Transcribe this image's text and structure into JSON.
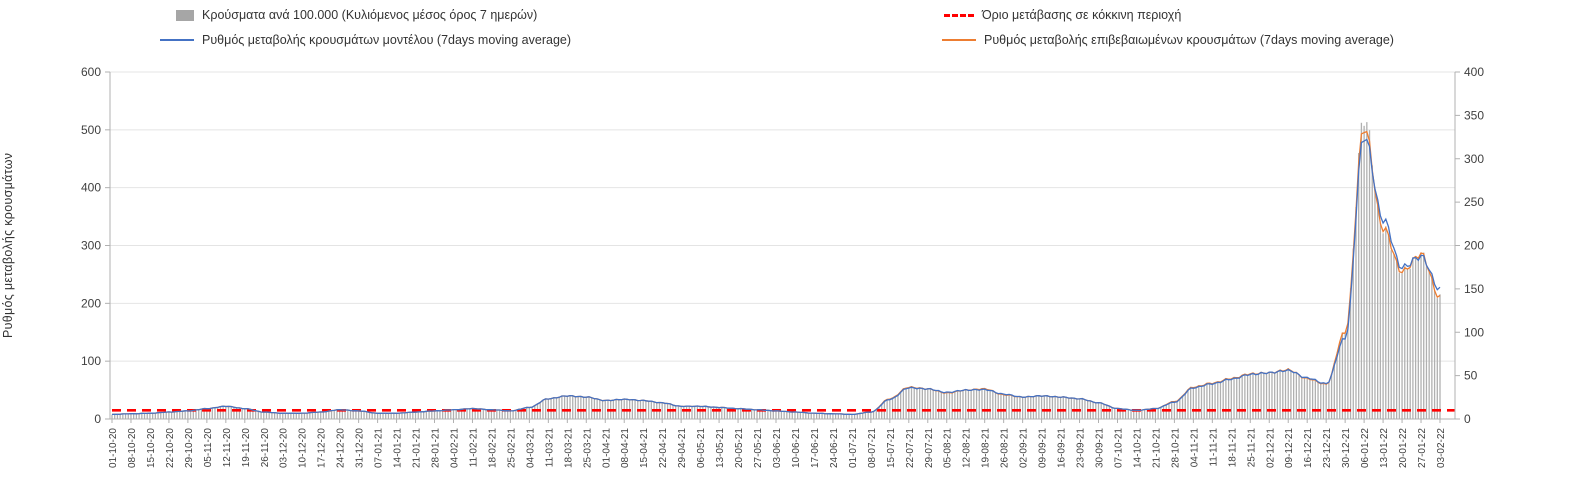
{
  "legend": {
    "items": [
      {
        "label": "Κρούσματα ανά 100.000 (Κυλιόμενος μέσος όρος 7 ημερών)",
        "swatch": "gray-bar",
        "color": "#a6a6a6"
      },
      {
        "label": "Όριο μετάβασης σε κόκκινη περιοχή",
        "swatch": "red-dashed",
        "color": "#ff0000"
      },
      {
        "label": "Ρυθμός μεταβολής κρουσμάτων μοντέλου (7days moving average)",
        "swatch": "blue-line",
        "color": "#4472c4"
      },
      {
        "label": "Ρυθμός μεταβολής επιβεβαιωμένων κρουσμάτων (7days moving average)",
        "swatch": "orange-line",
        "color": "#ed7d31"
      }
    ]
  },
  "y_axis_left": {
    "title": "Ρυθμός μεταβολής κρουσμάτων",
    "min": 0,
    "max": 600,
    "step": 100
  },
  "y_axis_right": {
    "min": 0,
    "max": 400,
    "step": 50
  },
  "chart_data": {
    "type": "bar+line",
    "title": "",
    "xlabel": "",
    "ylabel_left": "Ρυθμός μεταβολής κρουσμάτων",
    "ylim_left": [
      0,
      600
    ],
    "ylim_right": [
      0,
      400
    ],
    "grid": true,
    "legend_position": "top",
    "categories": [
      "01-10-20",
      "08-10-20",
      "15-10-20",
      "22-10-20",
      "29-10-20",
      "05-11-20",
      "12-11-20",
      "19-11-20",
      "26-11-20",
      "03-12-20",
      "10-12-20",
      "17-12-20",
      "24-12-20",
      "31-12-20",
      "07-01-21",
      "14-01-21",
      "21-01-21",
      "28-01-21",
      "04-02-21",
      "11-02-21",
      "18-02-21",
      "25-02-21",
      "04-03-21",
      "11-03-21",
      "18-03-21",
      "25-03-21",
      "01-04-21",
      "08-04-21",
      "15-04-21",
      "22-04-21",
      "29-04-21",
      "06-05-21",
      "13-05-21",
      "20-05-21",
      "27-05-21",
      "03-06-21",
      "10-06-21",
      "17-06-21",
      "24-06-21",
      "01-07-21",
      "08-07-21",
      "15-07-21",
      "22-07-21",
      "29-07-21",
      "05-08-21",
      "12-08-21",
      "19-08-21",
      "26-08-21",
      "02-09-21",
      "09-09-21",
      "16-09-21",
      "23-09-21",
      "30-09-21",
      "07-10-21",
      "14-10-21",
      "21-10-21",
      "28-10-21",
      "04-11-21",
      "11-11-21",
      "18-11-21",
      "25-11-21",
      "02-12-21",
      "09-12-21",
      "16-12-21",
      "23-12-21",
      "30-12-21",
      "06-01-22",
      "13-01-22",
      "20-01-22",
      "27-01-22",
      "03-02-22"
    ],
    "series": [
      {
        "name": "Κρούσματα ανά 100.000 (Κυλιόμενος μέσος όρος 7 ημερών)",
        "type": "bar",
        "axis": "right",
        "color": "#b0b0b0",
        "values": [
          5,
          6,
          7,
          8,
          9,
          12,
          15,
          12,
          8,
          7,
          7,
          8,
          11,
          9,
          7,
          7,
          8,
          9,
          11,
          12,
          11,
          9,
          13,
          23,
          27,
          25,
          21,
          23,
          21,
          19,
          15,
          15,
          13,
          12,
          11,
          9,
          8,
          7,
          6,
          5,
          8,
          23,
          37,
          35,
          30,
          33,
          35,
          28,
          25,
          27,
          25,
          23,
          19,
          12,
          10,
          12,
          20,
          37,
          41,
          47,
          52,
          53,
          57,
          47,
          40,
          100,
          348,
          220,
          170,
          190,
          140
        ]
      },
      {
        "name": "Ρυθμός μεταβολής κρουσμάτων μοντέλου (7days moving average)",
        "type": "line",
        "axis": "left",
        "color": "#4472c4",
        "values": [
          8,
          9,
          10,
          12,
          14,
          18,
          22,
          18,
          12,
          10,
          10,
          12,
          16,
          14,
          10,
          10,
          12,
          14,
          16,
          18,
          16,
          14,
          20,
          35,
          40,
          38,
          32,
          34,
          32,
          28,
          22,
          22,
          20,
          18,
          16,
          14,
          12,
          10,
          9,
          8,
          12,
          34,
          54,
          52,
          46,
          50,
          51,
          43,
          38,
          40,
          38,
          35,
          28,
          18,
          15,
          18,
          29,
          54,
          61,
          69,
          77,
          80,
          84,
          71,
          61,
          140,
          490,
          345,
          262,
          281,
          224
        ]
      },
      {
        "name": "Ρυθμός μεταβολής επιβεβαιωμένων κρουσμάτων (7days moving average)",
        "type": "line",
        "axis": "left",
        "color": "#ed7d31",
        "values": [
          8,
          9,
          10,
          12,
          14,
          18,
          22,
          18,
          12,
          10,
          10,
          12,
          16,
          14,
          10,
          10,
          12,
          14,
          16,
          18,
          16,
          14,
          20,
          35,
          40,
          38,
          32,
          34,
          32,
          28,
          22,
          22,
          20,
          18,
          16,
          14,
          12,
          10,
          9,
          8,
          12,
          35,
          55,
          52,
          45,
          50,
          52,
          42,
          38,
          40,
          38,
          35,
          28,
          18,
          15,
          18,
          30,
          55,
          62,
          70,
          78,
          80,
          85,
          70,
          60,
          150,
          505,
          330,
          255,
          285,
          210
        ]
      }
    ],
    "threshold": {
      "label": "Όριο μετάβασης σε κόκκινη περιοχή",
      "axis": "right",
      "value": 10,
      "color": "#ff0000",
      "style": "dashed"
    }
  }
}
